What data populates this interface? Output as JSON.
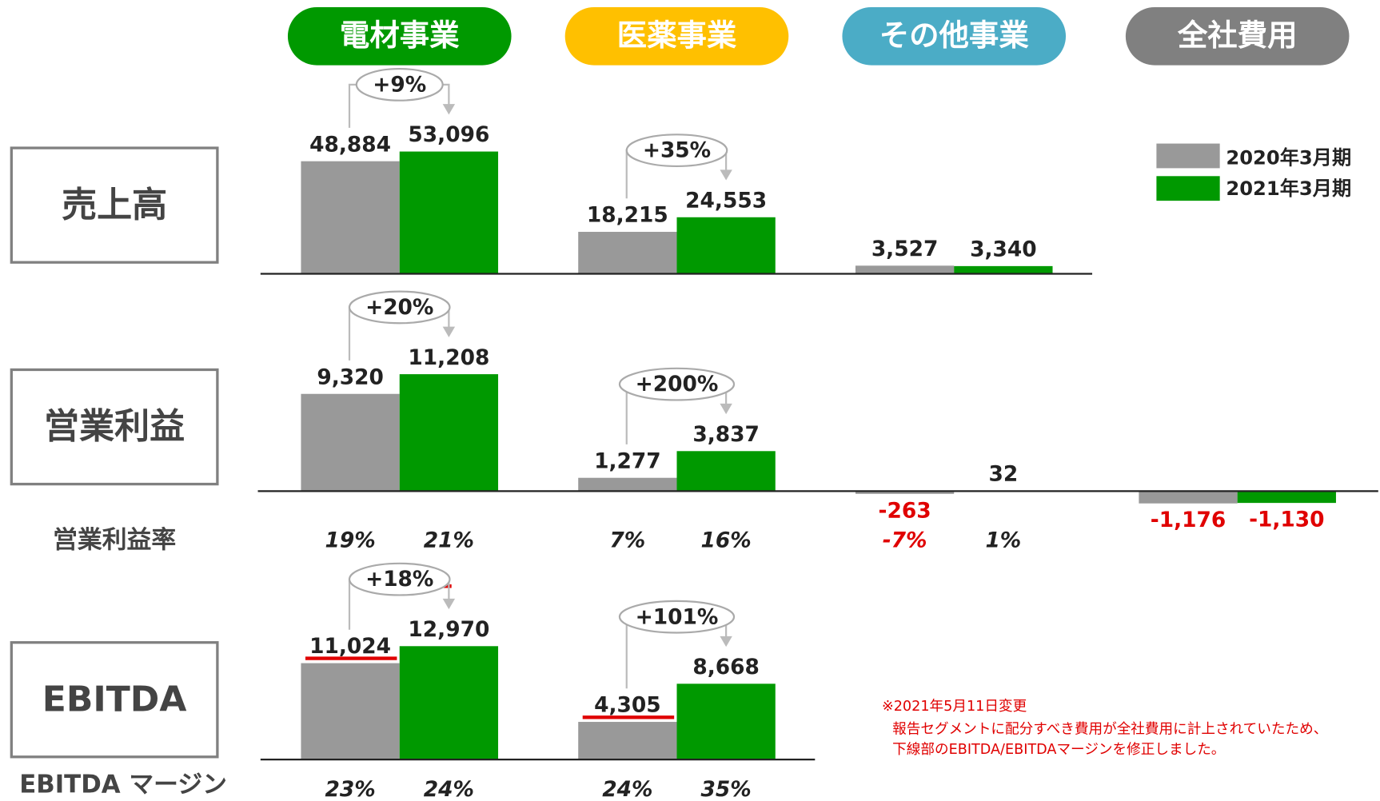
{
  "segments": [
    "電材事業",
    "医薬事業",
    "その他事業",
    "全社費用"
  ],
  "chart_data": {
    "type": "bar",
    "series": [
      {
        "name": "2020年3月期",
        "color": "#999999"
      },
      {
        "name": "2021年3月期",
        "color": "#009900"
      }
    ],
    "panels": [
      {
        "title": "売上高",
        "ylim": [
          0,
          60000
        ],
        "values": [
          [
            48884,
            18215,
            3527,
            null
          ],
          [
            53096,
            24553,
            3340,
            null
          ]
        ],
        "value_labels": [
          [
            "48,884",
            "18,215",
            "3,527",
            null
          ],
          [
            "53,096",
            "24,553",
            "3,340",
            null
          ]
        ],
        "changes": [
          "+9%",
          "+35%",
          null,
          null
        ]
      },
      {
        "title": "営業利益",
        "ylim": [
          -2000,
          12000
        ],
        "values": [
          [
            9320,
            1277,
            -263,
            -1176
          ],
          [
            11208,
            3837,
            32,
            -1130
          ]
        ],
        "value_labels": [
          [
            "9,320",
            "1,277",
            "-263",
            "-1,176"
          ],
          [
            "11,208",
            "3,837",
            "32",
            "-1,130"
          ]
        ],
        "changes": [
          "+20%",
          "+200%",
          null,
          null
        ],
        "margin_title": "営業利益率",
        "margins": [
          [
            "19%",
            "7%",
            "-7%",
            null
          ],
          [
            "21%",
            "16%",
            "1%",
            null
          ]
        ]
      },
      {
        "title": "EBITDA",
        "ylim": [
          0,
          15000
        ],
        "values": [
          [
            11024,
            4305,
            null,
            null
          ],
          [
            12970,
            8668,
            null,
            null
          ]
        ],
        "value_labels": [
          [
            "11,024",
            "4,305",
            null,
            null
          ],
          [
            "12,970",
            "8,668",
            null,
            null
          ]
        ],
        "changes": [
          "+18%",
          "+101%",
          null,
          null
        ],
        "margin_title": "EBITDA マージン",
        "margins": [
          [
            "23%",
            "24%",
            null,
            null
          ],
          [
            "24%",
            "35%",
            null,
            null
          ]
        ]
      }
    ]
  },
  "note": [
    "※2021年5月11日変更",
    "報告セグメントに配分すべき費用が全社費用に計上されていたため、",
    "下線部のEBITDA/EBITDAマージンを修正しました。"
  ]
}
